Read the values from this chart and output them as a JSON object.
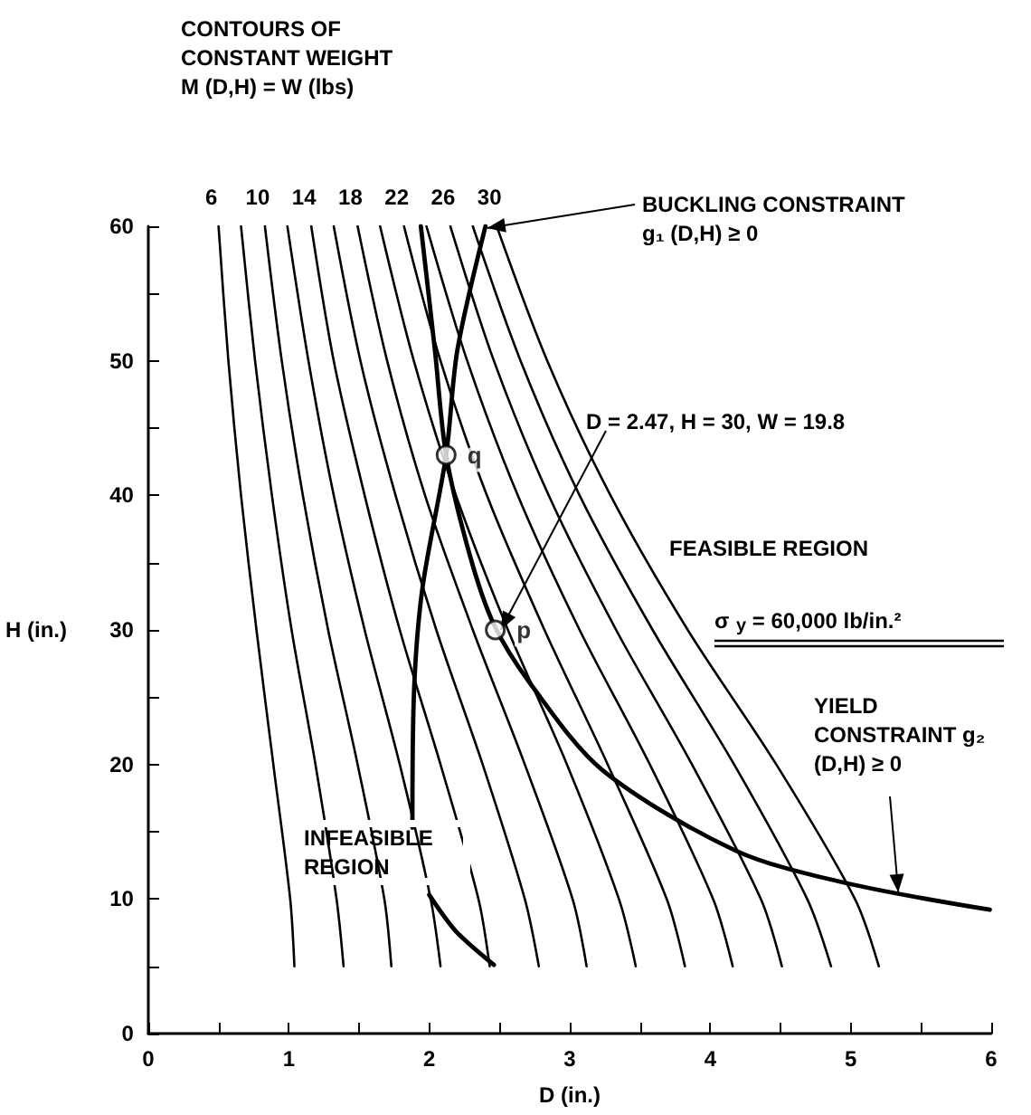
{
  "chart_data": {
    "type": "line",
    "xlabel": "D (in.)",
    "ylabel": "H (in.)",
    "xlim": [
      0,
      6
    ],
    "ylim": [
      0,
      60
    ],
    "xticks": [
      0,
      {
        "value": 0.5,
        "label": null
      },
      1,
      {
        "value": 1.5,
        "label": null
      },
      2,
      {
        "value": 2.5,
        "label": null
      },
      3,
      {
        "value": 3.5,
        "label": null
      },
      4,
      {
        "value": 4.5,
        "label": null
      },
      5,
      {
        "value": 5.5,
        "label": null
      },
      6
    ],
    "yticks": [
      0,
      {
        "value": 5,
        "label": null
      },
      10,
      {
        "value": 15,
        "label": null
      },
      20,
      {
        "value": 25,
        "label": null
      },
      30,
      {
        "value": 35,
        "label": null
      },
      40,
      {
        "value": 45,
        "label": null
      },
      50,
      {
        "value": 55,
        "label": null
      },
      60
    ],
    "grid": false,
    "legend": false,
    "marker": "none",
    "line_style": "solid",
    "series": [
      {
        "name": "6",
        "color": "#000000",
        "x": [
          1.04,
          1.01,
          0.89,
          0.77,
          0.66,
          0.57,
          0.5
        ],
        "values": [
          5,
          10,
          20,
          30,
          40,
          50,
          60
        ]
      },
      {
        "color": "#000000",
        "x": [
          1.39,
          1.34,
          1.19,
          1.02,
          0.88,
          0.76,
          0.66
        ],
        "values": [
          5,
          10,
          20,
          30,
          40,
          50,
          60
        ]
      },
      {
        "name": "10",
        "color": "#000000",
        "x": [
          1.73,
          1.68,
          1.49,
          1.28,
          1.1,
          0.95,
          0.83
        ],
        "values": [
          5,
          10,
          20,
          30,
          40,
          50,
          60
        ]
      },
      {
        "color": "#000000",
        "x": [
          2.08,
          2.01,
          1.79,
          1.54,
          1.32,
          1.14,
          0.99
        ],
        "values": [
          5,
          10,
          20,
          30,
          40,
          50,
          60
        ]
      },
      {
        "name": "14",
        "color": "#000000",
        "x": [
          2.43,
          2.35,
          2.08,
          1.79,
          1.54,
          1.32,
          1.16
        ],
        "values": [
          5,
          10,
          20,
          30,
          40,
          50,
          60
        ]
      },
      {
        "color": "#000000",
        "x": [
          2.78,
          2.68,
          2.38,
          2.05,
          1.76,
          1.51,
          1.32
        ],
        "values": [
          5,
          10,
          20,
          30,
          40,
          50,
          60
        ]
      },
      {
        "name": "18",
        "color": "#000000",
        "x": [
          3.12,
          3.02,
          2.68,
          2.31,
          1.97,
          1.7,
          1.49
        ],
        "values": [
          5,
          10,
          20,
          30,
          40,
          50,
          60
        ]
      },
      {
        "color": "#000000",
        "x": [
          3.47,
          3.35,
          2.98,
          2.56,
          2.19,
          1.89,
          1.65
        ],
        "values": [
          5,
          10,
          20,
          30,
          40,
          50,
          60
        ]
      },
      {
        "name": "22",
        "color": "#000000",
        "x": [
          3.82,
          3.69,
          3.27,
          2.82,
          2.41,
          2.08,
          1.82
        ],
        "values": [
          5,
          10,
          20,
          30,
          40,
          50,
          60
        ]
      },
      {
        "color": "#000000",
        "x": [
          4.16,
          4.02,
          3.57,
          3.07,
          2.63,
          2.27,
          1.98
        ],
        "values": [
          5,
          10,
          20,
          30,
          40,
          50,
          60
        ]
      },
      {
        "name": "26",
        "color": "#000000",
        "x": [
          4.51,
          4.36,
          3.87,
          3.33,
          2.85,
          2.46,
          2.15
        ],
        "values": [
          5,
          10,
          20,
          30,
          40,
          50,
          60
        ]
      },
      {
        "color": "#000000",
        "x": [
          4.86,
          4.69,
          4.17,
          3.59,
          3.07,
          2.65,
          2.31
        ],
        "values": [
          5,
          10,
          20,
          30,
          40,
          50,
          60
        ]
      },
      {
        "name": "30",
        "color": "#000000",
        "x": [
          5.2,
          5.03,
          4.47,
          3.84,
          3.29,
          2.84,
          2.48
        ],
        "values": [
          5,
          10,
          20,
          30,
          40,
          50,
          60
        ]
      },
      {
        "color": "#000000",
        "x": [
          2.4,
          2.2,
          2.12,
          1.95,
          1.89,
          1.88,
          null,
          2.0,
          2.19,
          2.46
        ],
        "values": [
          60,
          50.8,
          43,
          33,
          25,
          15.3,
          null,
          10.3,
          7.6,
          5.1
        ]
      },
      {
        "color": "#000000",
        "x": [
          1.94,
          2.04,
          2.12,
          2.29,
          2.46,
          2.72,
          3.23,
          4.18,
          4.96,
          5.99
        ],
        "values": [
          60,
          50.8,
          43,
          35.5,
          30.4,
          26,
          19.6,
          13.6,
          11.2,
          9.2
        ]
      },
      {
        "type": "scatter",
        "marker": "circle",
        "color": "#ffffff",
        "x": [
          2.47,
          2.12
        ],
        "values": [
          30,
          43
        ],
        "value_labels": [
          "p",
          "q"
        ]
      }
    ],
    "annotations": [
      "CONTOURS OF CONSTANT WEIGHT M (D,H) = W (lbs)",
      {
        "text": "BUCKLING CONSTRAINT g₁ (D,H) ≥ 0",
        "x": 2.4,
        "y": 60
      },
      {
        "text": "D = 2.47, H = 30, W = 19.8",
        "x": 2.47,
        "y": 30
      },
      "FEASIBLE REGION",
      "σ$_{y}$ = 60,000 lb/in.²",
      {
        "text": "YIELD CONSTRAINT g₂ (D,H) ≥ 0",
        "x": 5.3,
        "y": 10.5
      },
      "INFEASIBLE REGION"
    ]
  }
}
